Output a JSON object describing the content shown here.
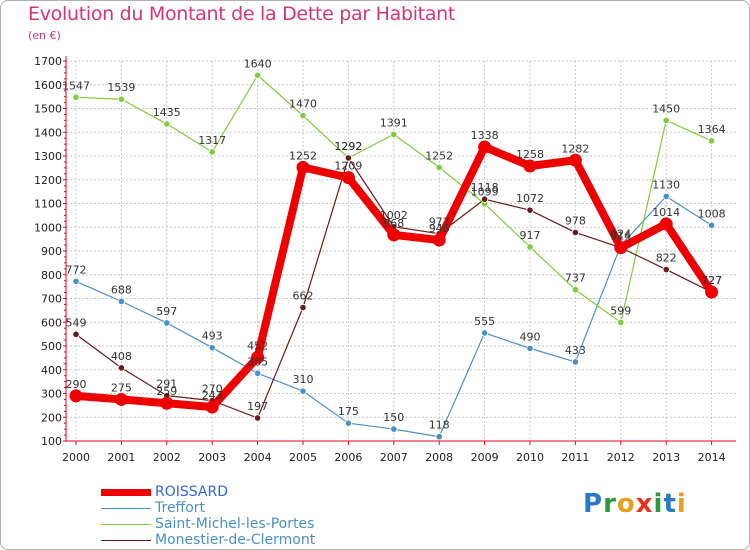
{
  "header": {
    "title": "Evolution du Montant de la Dette par Habitant",
    "subtitle": "(en €)"
  },
  "colors": {
    "title": "#d2357a",
    "grid": "#c8c8c8",
    "axis": "#e8001c",
    "tick_text": "#222222"
  },
  "chart_data": {
    "type": "line",
    "title": "Evolution du Montant de la Dette par Habitant",
    "subtitle": "(en €)",
    "xlabel": "",
    "ylabel": "",
    "ylim": [
      100,
      1700
    ],
    "yticks": [
      100,
      200,
      300,
      400,
      500,
      600,
      700,
      800,
      900,
      1000,
      1100,
      1200,
      1300,
      1400,
      1500,
      1600,
      1700
    ],
    "x": [
      "2000",
      "2001",
      "2002",
      "2003",
      "2004",
      "2005",
      "2006",
      "2007",
      "2008",
      "2009",
      "2010",
      "2011",
      "2012",
      "2013",
      "2014"
    ],
    "grid": true,
    "legend_position": "bottom-left",
    "series": [
      {
        "name": "Treffort",
        "color": "#4a90c8",
        "values": [
          772,
          688,
          597,
          493,
          385,
          310,
          175,
          150,
          118,
          555,
          490,
          433,
          924,
          1130,
          1008
        ],
        "labels": [
          "772",
          "688",
          "597",
          "493",
          "385",
          "310",
          "175",
          "150",
          "118",
          "555",
          "490",
          "433",
          "924",
          "1130",
          "1008"
        ]
      },
      {
        "name": "Saint-Michel-les-Portes",
        "color": "#7fcc3c",
        "values": [
          1547,
          1539,
          1435,
          1317,
          1640,
          1470,
          1292,
          1391,
          1252,
          1099,
          917,
          737,
          599,
          1450,
          1364
        ],
        "labels": [
          "1547",
          "1539",
          "1435",
          "1317",
          "1640",
          "1470",
          "1292",
          "1391",
          "1252",
          "1099",
          "917",
          "737",
          "599",
          "1450",
          "1364"
        ]
      },
      {
        "name": "Monestier-de-Clermont",
        "color": "#6b1a1a",
        "values": [
          549,
          408,
          291,
          270,
          197,
          662,
          1292,
          1002,
          973,
          1118,
          1072,
          978,
          914,
          822,
          727
        ],
        "labels": [
          "549",
          "408",
          "291",
          "270",
          "197",
          "662",
          "1292",
          "1002",
          "973",
          "1118",
          "1072",
          "978",
          "914",
          "822",
          "727"
        ]
      },
      {
        "name": "ROISSARD",
        "color": "#ee0000",
        "values": [
          290,
          275,
          259,
          243,
          452,
          1252,
          1209,
          968,
          946,
          1338,
          1258,
          1282,
          914,
          1014,
          727
        ],
        "labels": [
          "290",
          "275",
          "259",
          "243",
          "452",
          "1252",
          "1209",
          "968",
          "946",
          "1338",
          "1258",
          "1282",
          "914",
          "1014",
          "727"
        ]
      }
    ]
  },
  "legend": [
    {
      "label": "ROISSARD",
      "color": "#ee0000",
      "text_color": "#3366dd",
      "thickness": 7
    },
    {
      "label": "Treffort",
      "color": "#4a90c8",
      "text_color": "#4a90c8",
      "thickness": 1
    },
    {
      "label": "Saint-Michel-les-Portes",
      "color": "#7fcc3c",
      "text_color": "#4a90c8",
      "thickness": 1
    },
    {
      "label": "Monestier-de-Clermont",
      "color": "#6b1a1a",
      "text_color": "#4a90c8",
      "thickness": 1
    }
  ],
  "logo": {
    "letters": [
      "P",
      "r",
      "o",
      "x",
      "i",
      "t",
      "i"
    ],
    "colors": [
      "#2a78c8",
      "#2a9a3a",
      "#e8a020",
      "#e83020",
      "#2a9a3a",
      "#2a78c8",
      "#e8a020"
    ]
  }
}
